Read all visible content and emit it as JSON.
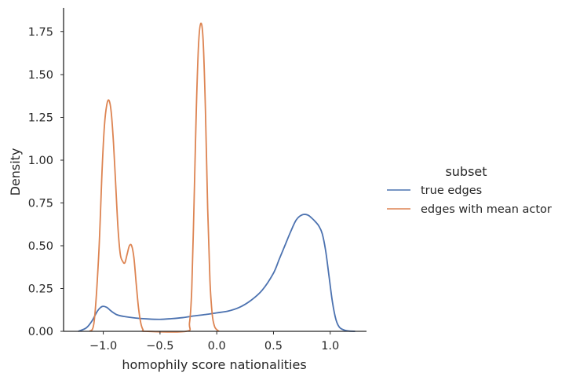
{
  "chart_data": {
    "type": "line",
    "title": "",
    "xlabel": "homophily score nationalities",
    "ylabel": "Density",
    "xlim": [
      -1.35,
      1.32
    ],
    "ylim": [
      0,
      1.89
    ],
    "x_ticks": [
      -1.0,
      -0.5,
      0.0,
      0.5,
      1.0
    ],
    "x_tick_labels": [
      "−1.0",
      "−0.5",
      "0.0",
      "0.5",
      "1.0"
    ],
    "y_ticks": [
      0,
      0.25,
      0.5,
      0.75,
      1.0,
      1.25,
      1.5,
      1.75
    ],
    "y_tick_labels": [
      "0.00",
      "0.25",
      "0.50",
      "0.75",
      "1.00",
      "1.25",
      "1.50",
      "1.75"
    ],
    "legend": {
      "title": "subset",
      "placement": "right",
      "entries": [
        "true edges",
        "edges with mean actor"
      ]
    },
    "series": [
      {
        "name": "true edges",
        "color": "#4c72b0",
        "x": [
          -1.22,
          -1.15,
          -1.1,
          -1.05,
          -1.01,
          -0.97,
          -0.93,
          -0.88,
          -0.82,
          -0.72,
          -0.6,
          -0.5,
          -0.4,
          -0.3,
          -0.2,
          -0.1,
          0.0,
          0.1,
          0.2,
          0.3,
          0.4,
          0.5,
          0.55,
          0.6,
          0.65,
          0.7,
          0.75,
          0.8,
          0.84,
          0.87,
          0.9,
          0.93,
          0.96,
          0.99,
          1.02,
          1.05,
          1.08,
          1.12,
          1.16,
          1.22
        ],
        "y": [
          0.0,
          0.02,
          0.06,
          0.12,
          0.145,
          0.14,
          0.118,
          0.097,
          0.087,
          0.078,
          0.072,
          0.07,
          0.074,
          0.08,
          0.09,
          0.098,
          0.108,
          0.118,
          0.14,
          0.18,
          0.24,
          0.34,
          0.42,
          0.5,
          0.58,
          0.65,
          0.68,
          0.68,
          0.66,
          0.64,
          0.615,
          0.57,
          0.47,
          0.32,
          0.17,
          0.07,
          0.025,
          0.008,
          0.002,
          0.0
        ]
      },
      {
        "name": "edges with mean actor",
        "color": "#dd8452",
        "x": [
          -1.12,
          -1.08,
          -1.04,
          -1.01,
          -0.99,
          -0.97,
          -0.95,
          -0.93,
          -0.91,
          -0.89,
          -0.87,
          -0.85,
          -0.83,
          -0.81,
          -0.79,
          -0.77,
          -0.75,
          -0.73,
          -0.71,
          -0.69,
          -0.67,
          -0.65,
          -0.62,
          -0.27,
          -0.24,
          -0.22,
          -0.2,
          -0.18,
          -0.16,
          -0.14,
          -0.12,
          -0.1,
          -0.08,
          -0.06,
          -0.04,
          -0.02,
          0.0,
          0.02
        ],
        "y": [
          0.0,
          0.06,
          0.45,
          0.95,
          1.2,
          1.32,
          1.35,
          1.28,
          1.1,
          0.85,
          0.6,
          0.45,
          0.41,
          0.4,
          0.45,
          0.5,
          0.5,
          0.43,
          0.28,
          0.14,
          0.05,
          0.01,
          0.0,
          0.0,
          0.05,
          0.25,
          0.75,
          1.3,
          1.68,
          1.8,
          1.7,
          1.3,
          0.72,
          0.3,
          0.1,
          0.03,
          0.01,
          0.0
        ]
      }
    ]
  }
}
